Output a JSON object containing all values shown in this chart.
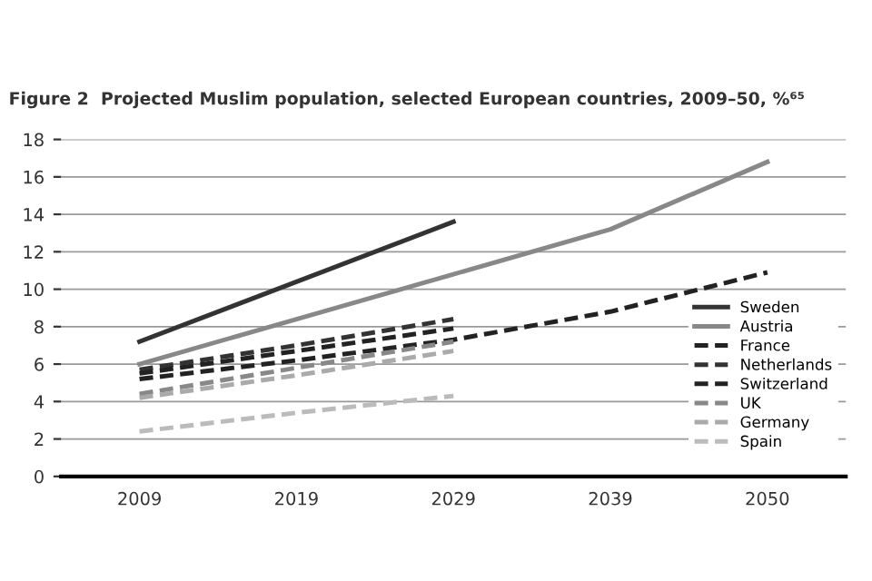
{
  "chart_data": {
    "type": "line",
    "title": "Figure 2  Projected Muslim population, selected European countries, 2009–50, %⁶⁵",
    "categories": [
      "2009",
      "2019",
      "2029",
      "2039",
      "2050"
    ],
    "series": [
      {
        "name": "Sweden",
        "color": "#333333",
        "line_style": "solid",
        "values": [
          7.2,
          10.4,
          13.6,
          null,
          null
        ]
      },
      {
        "name": "Austria",
        "color": "#888888",
        "line_style": "solid",
        "values": [
          6.0,
          8.4,
          10.8,
          13.2,
          16.8
        ]
      },
      {
        "name": "France",
        "color": "#222222",
        "line_style": "dashed",
        "values": [
          5.2,
          6.2,
          7.3,
          8.8,
          10.9
        ]
      },
      {
        "name": "Netherlands",
        "color": "#333333",
        "line_style": "dashed",
        "values": [
          5.7,
          7.0,
          8.4,
          null,
          null
        ]
      },
      {
        "name": "Switzerland",
        "color": "#222222",
        "line_style": "dashed",
        "values": [
          5.5,
          6.7,
          7.9,
          null,
          null
        ]
      },
      {
        "name": "UK",
        "color": "#888888",
        "line_style": "dashed",
        "values": [
          4.4,
          5.8,
          7.2,
          null,
          null
        ]
      },
      {
        "name": "Germany",
        "color": "#aaaaaa",
        "line_style": "dashed",
        "values": [
          4.2,
          5.4,
          6.7,
          null,
          null
        ]
      },
      {
        "name": "Spain",
        "color": "#bbbbbb",
        "line_style": "dashed",
        "values": [
          2.4,
          3.4,
          4.3,
          null,
          null
        ]
      }
    ],
    "ylim": [
      0,
      18
    ],
    "yticks": [
      0,
      2,
      4,
      6,
      8,
      10,
      12,
      14,
      16,
      18
    ],
    "grid": "y",
    "legend": "right",
    "marker": "none"
  }
}
